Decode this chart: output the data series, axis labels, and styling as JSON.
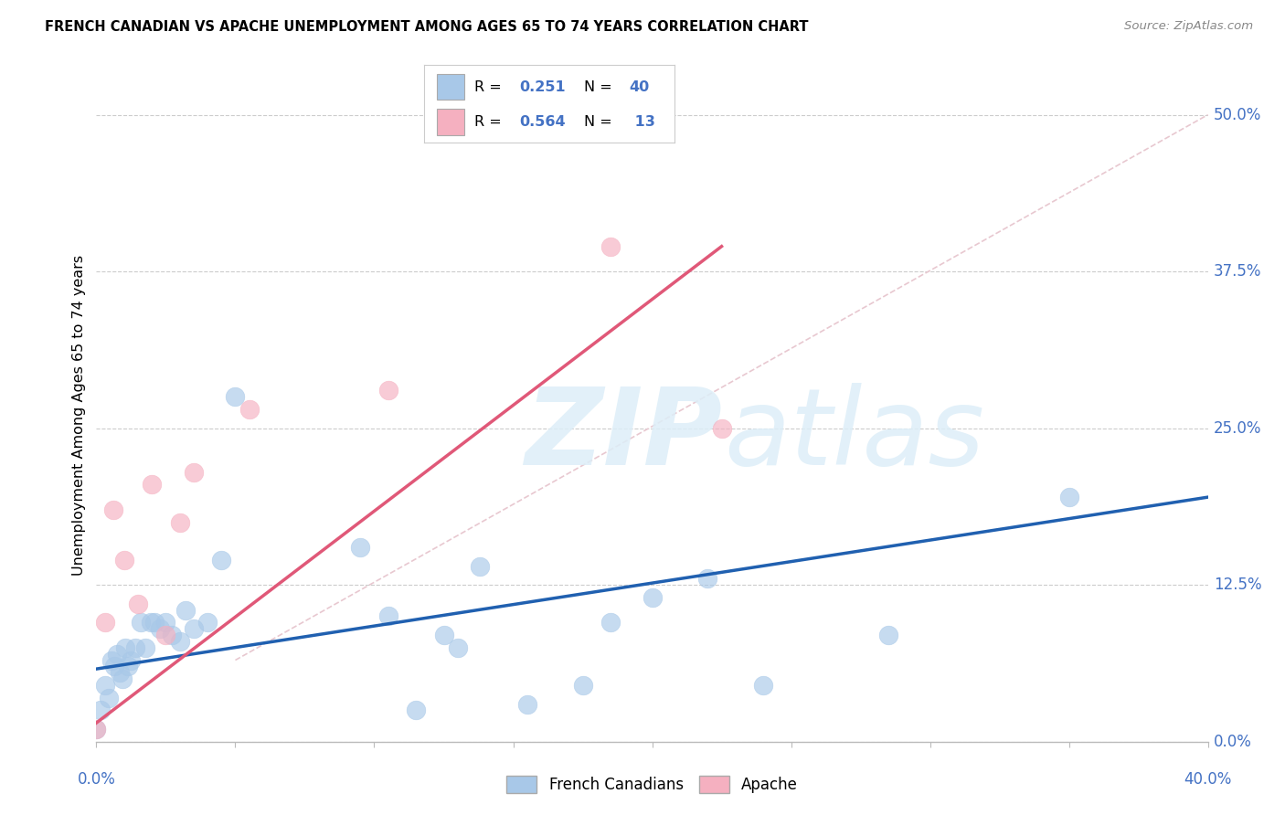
{
  "title": "FRENCH CANADIAN VS APACHE UNEMPLOYMENT AMONG AGES 65 TO 74 YEARS CORRELATION CHART",
  "source": "Source: ZipAtlas.com",
  "ylabel": "Unemployment Among Ages 65 to 74 years",
  "ytick_vals": [
    0.0,
    12.5,
    25.0,
    37.5,
    50.0
  ],
  "xlim": [
    0.0,
    40.0
  ],
  "ylim": [
    0.0,
    52.0
  ],
  "legend_label1": "French Canadians",
  "legend_label2": "Apache",
  "blue_scatter": "#a8c8e8",
  "blue_scatter_edge": "#a8c8e8",
  "blue_line": "#2060b0",
  "pink_scatter": "#f5b0c0",
  "pink_scatter_edge": "#f5b0c0",
  "pink_line": "#e05878",
  "diag_color": "#e8c8d0",
  "label_color": "#4472c4",
  "grid_color": "#cccccc",
  "french_x": [
    0.0,
    0.15,
    0.3,
    0.45,
    0.55,
    0.65,
    0.75,
    0.85,
    0.95,
    1.05,
    1.15,
    1.25,
    1.4,
    1.6,
    1.75,
    1.95,
    2.1,
    2.3,
    2.5,
    2.7,
    3.0,
    3.2,
    3.5,
    4.0,
    4.5,
    5.0,
    9.5,
    10.5,
    11.5,
    12.5,
    13.0,
    13.8,
    15.5,
    17.5,
    18.5,
    20.0,
    22.0,
    24.0,
    28.5,
    35.0
  ],
  "french_y": [
    1.0,
    2.5,
    4.5,
    3.5,
    6.5,
    6.0,
    7.0,
    5.5,
    5.0,
    7.5,
    6.0,
    6.5,
    7.5,
    9.5,
    7.5,
    9.5,
    9.5,
    9.0,
    9.5,
    8.5,
    8.0,
    10.5,
    9.0,
    9.5,
    14.5,
    27.5,
    15.5,
    10.0,
    2.5,
    8.5,
    7.5,
    14.0,
    3.0,
    4.5,
    9.5,
    11.5,
    13.0,
    4.5,
    8.5,
    19.5
  ],
  "apache_x": [
    0.0,
    0.3,
    0.6,
    1.0,
    1.5,
    2.0,
    2.5,
    3.0,
    3.5,
    5.5,
    10.5,
    18.5,
    22.5
  ],
  "apache_y": [
    1.0,
    9.5,
    18.5,
    14.5,
    11.0,
    20.5,
    8.5,
    17.5,
    21.5,
    26.5,
    28.0,
    39.5,
    25.0
  ],
  "blue_reg_x0": 0.0,
  "blue_reg_x1": 40.0,
  "blue_reg_y0": 5.8,
  "blue_reg_y1": 19.5,
  "pink_reg_x0": 0.0,
  "pink_reg_x1": 22.5,
  "pink_reg_y0": 1.5,
  "pink_reg_y1": 39.5,
  "diag_x0": 5.0,
  "diag_x1": 40.0,
  "diag_y0": 6.5,
  "diag_y1": 50.0
}
